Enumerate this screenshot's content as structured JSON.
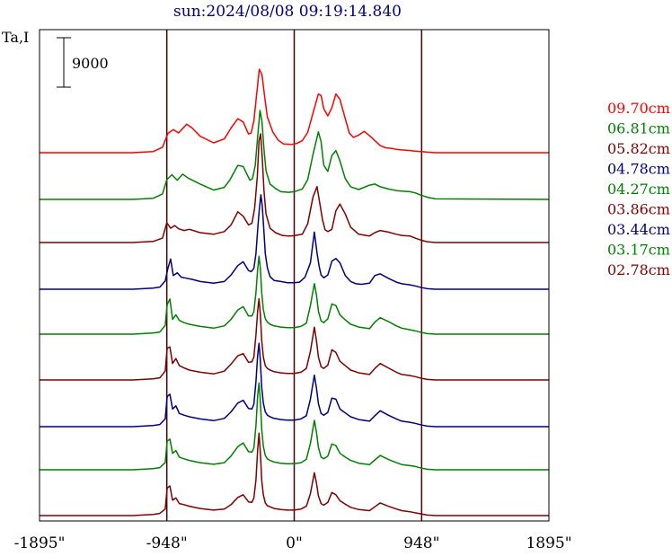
{
  "chart_data": {
    "type": "line",
    "title": "sun:2024/08/08 09:19:14.840",
    "ylabel": "Ta,I",
    "scale_bar_label": "9000",
    "scale_bar_value": 9000,
    "x_ticks": [
      {
        "value": -1895,
        "label": "-1895\""
      },
      {
        "value": -948,
        "label": "-948\""
      },
      {
        "value": 0,
        "label": "0\""
      },
      {
        "value": 948,
        "label": "948\""
      },
      {
        "value": 1895,
        "label": "1895\""
      }
    ],
    "xlim": [
      -1895,
      1895
    ],
    "vertical_lines": [
      -948,
      0,
      948
    ],
    "ylim": [
      0,
      75000
    ],
    "series": [
      {
        "name": "09.70cm",
        "color": "#ff0000",
        "offset": 54000,
        "x": [
          -1895,
          -1200,
          -1050,
          -980,
          -940,
          -900,
          -860,
          -800,
          -760,
          -700,
          -600,
          -520,
          -470,
          -420,
          -380,
          -340,
          -320,
          -300,
          -280,
          -260,
          -240,
          -220,
          -200,
          -160,
          -120,
          -80,
          -20,
          20,
          60,
          100,
          140,
          180,
          200,
          220,
          250,
          280,
          310,
          340,
          380,
          410,
          440,
          480,
          520,
          560,
          600,
          640,
          680,
          720,
          760,
          800,
          860,
          900,
          948,
          990,
          1050,
          1895
        ],
        "y": [
          0,
          0,
          200,
          1000,
          3500,
          4200,
          3600,
          5200,
          4500,
          3000,
          1800,
          2500,
          4500,
          6200,
          5600,
          3400,
          3600,
          5800,
          10500,
          15200,
          14200,
          10200,
          6500,
          3800,
          2300,
          1600,
          1500,
          1700,
          2200,
          3700,
          7200,
          10700,
          10400,
          8000,
          6700,
          8200,
          10700,
          9700,
          6200,
          3600,
          2800,
          3200,
          3900,
          3100,
          2200,
          1300,
          900,
          800,
          600,
          500,
          400,
          300,
          200,
          100,
          0,
          0
        ]
      },
      {
        "name": "06.81cm",
        "color": "#008000",
        "offset": 46000,
        "x": [
          -1895,
          -1200,
          -1050,
          -980,
          -948,
          -910,
          -870,
          -830,
          -790,
          -700,
          -600,
          -520,
          -480,
          -420,
          -380,
          -330,
          -310,
          -290,
          -270,
          -255,
          -240,
          -225,
          -210,
          -180,
          -140,
          -100,
          -40,
          0,
          60,
          100,
          140,
          180,
          200,
          220,
          250,
          280,
          310,
          340,
          380,
          420,
          480,
          560,
          600,
          640,
          700,
          760,
          800,
          860,
          900,
          940,
          990,
          1050,
          1895
        ],
        "y": [
          0,
          0,
          200,
          1000,
          3600,
          4500,
          3500,
          4600,
          3900,
          2800,
          1700,
          2200,
          3500,
          6200,
          6000,
          3500,
          3800,
          6200,
          12000,
          16200,
          14200,
          9200,
          5200,
          2800,
          2000,
          1400,
          1300,
          1400,
          1900,
          3600,
          8200,
          12300,
          10500,
          6200,
          5100,
          8000,
          8900,
          7000,
          3800,
          2300,
          1800,
          2600,
          2800,
          2300,
          1900,
          1600,
          1500,
          1400,
          1200,
          800,
          400,
          100,
          0
        ]
      },
      {
        "name": "05.82cm",
        "color": "#800000",
        "offset": 38000,
        "x": [
          -1895,
          -1200,
          -1050,
          -980,
          -948,
          -920,
          -890,
          -860,
          -820,
          -780,
          -700,
          -600,
          -520,
          -470,
          -420,
          -380,
          -340,
          -315,
          -295,
          -275,
          -262,
          -250,
          -238,
          -225,
          -210,
          -180,
          -140,
          -90,
          -40,
          0,
          60,
          100,
          140,
          170,
          190,
          210,
          230,
          250,
          280,
          310,
          340,
          380,
          420,
          480,
          560,
          600,
          640,
          700,
          760,
          800,
          860,
          900,
          948,
          990,
          1050,
          1895
        ],
        "y": [
          0,
          0,
          200,
          800,
          3600,
          2600,
          3100,
          2500,
          2200,
          2400,
          1800,
          1500,
          2000,
          3200,
          5600,
          4800,
          3200,
          3500,
          6200,
          12000,
          18500,
          19800,
          15500,
          9500,
          5200,
          2600,
          1800,
          1300,
          1200,
          1250,
          1500,
          3400,
          8300,
          10200,
          7200,
          4200,
          2300,
          2000,
          2400,
          5800,
          7000,
          5200,
          2800,
          1500,
          1200,
          1800,
          2200,
          1900,
          1500,
          1300,
          1200,
          800,
          400,
          150,
          0,
          0
        ]
      },
      {
        "name": "04.78cm",
        "color": "#000080",
        "offset": 30000,
        "x": [
          -1895,
          -1200,
          -1050,
          -1000,
          -960,
          -940,
          -920,
          -900,
          -870,
          -840,
          -800,
          -760,
          -700,
          -600,
          -520,
          -470,
          -420,
          -380,
          -340,
          -320,
          -300,
          -285,
          -270,
          -260,
          -248,
          -238,
          -228,
          -215,
          -200,
          -180,
          -150,
          -100,
          -50,
          0,
          40,
          80,
          120,
          150,
          170,
          185,
          200,
          220,
          250,
          280,
          310,
          340,
          380,
          420,
          460,
          500,
          560,
          600,
          640,
          700,
          760,
          800,
          860,
          900,
          948,
          990,
          1050,
          1895
        ],
        "y": [
          0,
          0,
          200,
          400,
          1500,
          3800,
          5500,
          2500,
          3000,
          2200,
          2000,
          1800,
          1400,
          1100,
          1400,
          2600,
          4300,
          5000,
          3400,
          3200,
          3800,
          6500,
          11500,
          14500,
          17200,
          15200,
          11500,
          6500,
          3900,
          2300,
          1600,
          1400,
          1200,
          1200,
          1300,
          2200,
          4800,
          10400,
          6600,
          4200,
          2600,
          2100,
          2600,
          5100,
          5600,
          4800,
          2500,
          1400,
          1000,
          900,
          1100,
          2500,
          2800,
          2000,
          1300,
          1000,
          800,
          600,
          300,
          100,
          0,
          0
        ]
      },
      {
        "name": "04.27cm",
        "color": "#008000",
        "offset": 22000,
        "x": [
          -1895,
          -1200,
          -1050,
          -1000,
          -960,
          -945,
          -925,
          -905,
          -880,
          -855,
          -820,
          -780,
          -700,
          -600,
          -520,
          -470,
          -420,
          -380,
          -340,
          -315,
          -300,
          -285,
          -272,
          -262,
          -252,
          -242,
          -230,
          -215,
          -200,
          -180,
          -150,
          -100,
          -50,
          0,
          50,
          90,
          120,
          150,
          165,
          180,
          200,
          220,
          250,
          280,
          310,
          340,
          380,
          420,
          480,
          560,
          600,
          640,
          700,
          760,
          800,
          860,
          900,
          948,
          990,
          1050,
          1895
        ],
        "y": [
          0,
          0,
          200,
          400,
          1600,
          5400,
          6400,
          2700,
          3500,
          2500,
          2100,
          1800,
          1400,
          1100,
          1500,
          2700,
          4400,
          5000,
          3300,
          3300,
          4100,
          7600,
          11800,
          14200,
          12000,
          7600,
          4500,
          2800,
          2200,
          1800,
          1500,
          1300,
          1200,
          1200,
          1400,
          2000,
          5200,
          9200,
          7200,
          4200,
          2400,
          2100,
          2800,
          5500,
          5200,
          3500,
          2600,
          1800,
          1300,
          1000,
          2200,
          3000,
          2300,
          1500,
          1100,
          800,
          600,
          300,
          100,
          0,
          0
        ]
      },
      {
        "name": "03.86cm",
        "color": "#800000",
        "offset": 16000,
        "x": [
          -1895,
          -1200,
          -1050,
          -1000,
          -960,
          -945,
          -925,
          -905,
          -880,
          -855,
          -820,
          -780,
          -700,
          -600,
          -520,
          -470,
          -420,
          -380,
          -340,
          -315,
          -300,
          -285,
          -272,
          -262,
          -252,
          -242,
          -230,
          -215,
          -200,
          -180,
          -150,
          -100,
          -50,
          0,
          50,
          90,
          120,
          150,
          165,
          180,
          200,
          220,
          250,
          280,
          310,
          340,
          380,
          420,
          480,
          560,
          600,
          640,
          700,
          760,
          800,
          860,
          900,
          948,
          990,
          1050,
          1895
        ],
        "y": [
          0,
          0,
          200,
          400,
          1600,
          5800,
          6000,
          3000,
          3900,
          2600,
          2200,
          1800,
          1400,
          1100,
          1600,
          2900,
          4400,
          4800,
          3200,
          3300,
          4200,
          8200,
          12600,
          14800,
          12000,
          7200,
          4200,
          2600,
          2100,
          1800,
          1500,
          1300,
          1200,
          1200,
          1400,
          2100,
          5200,
          9600,
          7200,
          4200,
          2400,
          2100,
          2700,
          5500,
          5000,
          3400,
          2600,
          1800,
          1300,
          1000,
          2100,
          3000,
          2200,
          1400,
          1000,
          800,
          600,
          300,
          100,
          0,
          0
        ]
      },
      {
        "name": "03.44cm",
        "color": "#000080",
        "offset": 8000,
        "x": [
          -1895,
          -1200,
          -1050,
          -1000,
          -960,
          -945,
          -925,
          -905,
          -880,
          -855,
          -820,
          -780,
          -700,
          -600,
          -520,
          -470,
          -420,
          -380,
          -340,
          -315,
          -300,
          -285,
          -272,
          -262,
          -252,
          -242,
          -230,
          -215,
          -200,
          -180,
          -150,
          -100,
          -50,
          0,
          50,
          90,
          120,
          150,
          165,
          180,
          200,
          220,
          250,
          280,
          310,
          340,
          380,
          420,
          480,
          560,
          600,
          640,
          700,
          760,
          800,
          860,
          900,
          948,
          990,
          1050,
          1895
        ],
        "y": [
          0,
          0,
          200,
          400,
          1400,
          5500,
          5900,
          3200,
          3800,
          2400,
          2100,
          1800,
          1400,
          1100,
          1500,
          2700,
          4300,
          4800,
          3300,
          3200,
          4100,
          8200,
          13000,
          15200,
          12000,
          7200,
          4300,
          2700,
          2100,
          1800,
          1500,
          1300,
          1200,
          1200,
          1400,
          2000,
          5000,
          9400,
          7100,
          4200,
          2400,
          2100,
          2600,
          5200,
          5000,
          3200,
          2500,
          1800,
          1300,
          1000,
          2000,
          2900,
          2100,
          1400,
          1000,
          800,
          600,
          300,
          100,
          0,
          0
        ]
      },
      {
        "name": "03.17cm",
        "color": "#008000",
        "offset": 0,
        "x": [
          -1895,
          -1200,
          -1050,
          -1000,
          -960,
          -945,
          -925,
          -905,
          -880,
          -855,
          -820,
          -780,
          -700,
          -600,
          -520,
          -470,
          -420,
          -380,
          -340,
          -315,
          -300,
          -285,
          -272,
          -262,
          -252,
          -242,
          -230,
          -215,
          -200,
          -180,
          -150,
          -100,
          -50,
          0,
          50,
          90,
          120,
          150,
          165,
          180,
          200,
          220,
          250,
          280,
          310,
          340,
          380,
          420,
          480,
          560,
          600,
          640,
          700,
          760,
          800,
          860,
          900,
          948,
          990,
          1050,
          1895
        ],
        "y": [
          0,
          0,
          200,
          400,
          1300,
          5200,
          5600,
          3000,
          3500,
          2300,
          2000,
          1700,
          1300,
          1000,
          1300,
          2500,
          4200,
          4900,
          3300,
          3200,
          4000,
          8000,
          13500,
          15800,
          12500,
          7400,
          4300,
          2600,
          2000,
          1700,
          1400,
          1200,
          1100,
          1100,
          1300,
          1900,
          4800,
          9000,
          6900,
          4100,
          2300,
          2000,
          2500,
          4700,
          4400,
          3000,
          2300,
          1700,
          1200,
          950,
          1800,
          2600,
          1900,
          1300,
          950,
          750,
          600,
          300,
          100,
          0,
          0
        ]
      },
      {
        "name": "02.78cm",
        "color": "#800000",
        "offset": -8000,
        "x": [
          -1895,
          -1200,
          -1050,
          -1000,
          -960,
          -945,
          -925,
          -905,
          -880,
          -855,
          -820,
          -780,
          -700,
          -600,
          -520,
          -470,
          -420,
          -380,
          -340,
          -315,
          -300,
          -285,
          -272,
          -262,
          -252,
          -242,
          -230,
          -215,
          -200,
          -180,
          -150,
          -100,
          -50,
          0,
          50,
          90,
          120,
          150,
          165,
          180,
          200,
          220,
          250,
          280,
          310,
          340,
          380,
          420,
          480,
          560,
          600,
          640,
          700,
          760,
          800,
          860,
          900,
          948,
          990,
          1050,
          1895
        ],
        "y": [
          0,
          0,
          200,
          400,
          1200,
          5000,
          5400,
          2800,
          3200,
          2200,
          2000,
          1700,
          1300,
          1000,
          1200,
          2000,
          3300,
          3800,
          2500,
          2400,
          3200,
          6500,
          12000,
          15000,
          11500,
          6500,
          3800,
          2300,
          1800,
          1600,
          1300,
          1100,
          1000,
          1000,
          1200,
          1700,
          4000,
          7800,
          6000,
          3600,
          2200,
          1900,
          2400,
          4200,
          3800,
          2700,
          2100,
          1500,
          1100,
          900,
          1600,
          2300,
          1700,
          1200,
          900,
          700,
          500,
          300,
          100,
          0,
          0
        ]
      }
    ]
  }
}
